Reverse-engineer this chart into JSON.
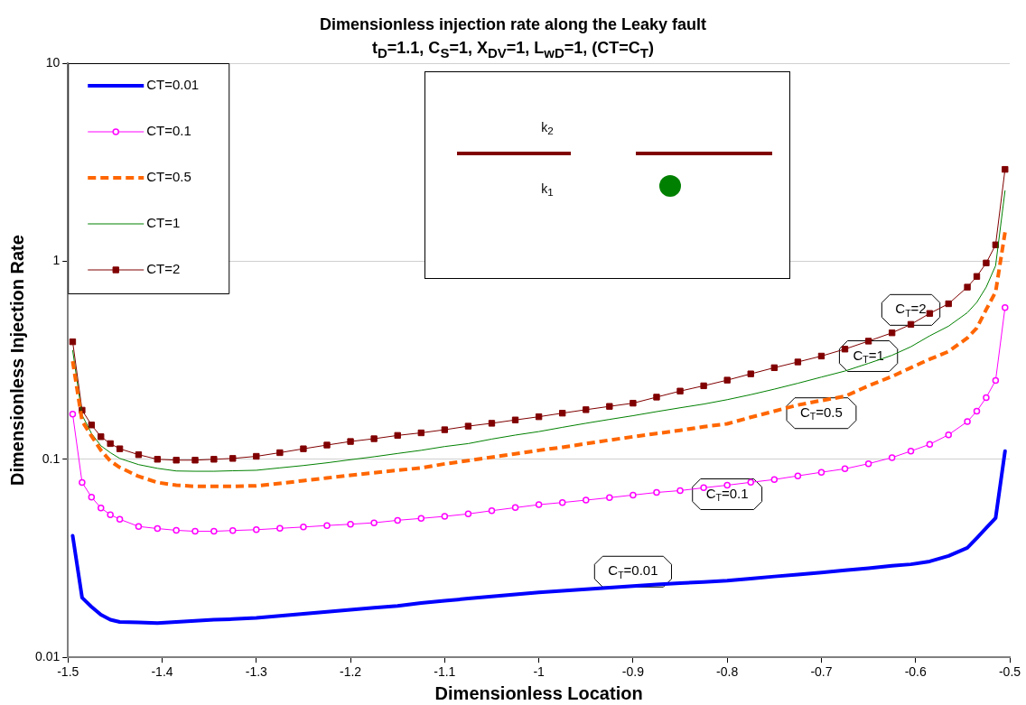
{
  "chart_data": {
    "type": "line",
    "title": "Dimensionless injection rate along the Leaky fault",
    "subtitle": "t$_{D}$=1.1,   C$_{S}$=1, X$_{DV}$=1, L$_{wD}$=1, (CT=C$_{T}$)",
    "xlabel": "Dimensionless Location",
    "ylabel": "Dimensionless Injection Rate",
    "x": [
      -1.495,
      -1.485,
      -1.475,
      -1.465,
      -1.455,
      -1.445,
      -1.425,
      -1.405,
      -1.385,
      -1.365,
      -1.345,
      -1.325,
      -1.3,
      -1.275,
      -1.25,
      -1.225,
      -1.2,
      -1.175,
      -1.15,
      -1.125,
      -1.1,
      -1.075,
      -1.05,
      -1.025,
      -1.0,
      -0.975,
      -0.95,
      -0.925,
      -0.9,
      -0.875,
      -0.85,
      -0.825,
      -0.8,
      -0.775,
      -0.75,
      -0.725,
      -0.7,
      -0.675,
      -0.65,
      -0.625,
      -0.605,
      -0.585,
      -0.565,
      -0.545,
      -0.535,
      -0.525,
      -0.515,
      -0.505
    ],
    "series": [
      {
        "name": "CT=0.01",
        "color": "#0000ff",
        "marker": "none",
        "line_style": "solid",
        "values": [
          0.0411,
          0.02,
          0.018,
          0.0164,
          0.0155,
          0.0151,
          0.015,
          0.0149,
          0.0151,
          0.0153,
          0.0155,
          0.0156,
          0.0158,
          0.0162,
          0.0166,
          0.017,
          0.0174,
          0.0178,
          0.0182,
          0.0188,
          0.0193,
          0.0198,
          0.0203,
          0.0208,
          0.0213,
          0.0217,
          0.0221,
          0.0225,
          0.0229,
          0.0233,
          0.0237,
          0.024,
          0.0244,
          0.025,
          0.0256,
          0.0262,
          0.0268,
          0.0275,
          0.0282,
          0.029,
          0.0295,
          0.0305,
          0.0325,
          0.0357,
          0.04,
          0.045,
          0.0505,
          0.11
        ]
      },
      {
        "name": "CT=0.1",
        "color": "#ff00ff",
        "marker": "circle",
        "line_style": "solid",
        "values": [
          0.169,
          0.0764,
          0.0644,
          0.0568,
          0.0525,
          0.0498,
          0.0458,
          0.0447,
          0.0438,
          0.0433,
          0.0433,
          0.0437,
          0.0441,
          0.0448,
          0.0455,
          0.0463,
          0.047,
          0.0478,
          0.0492,
          0.0503,
          0.0515,
          0.053,
          0.055,
          0.057,
          0.059,
          0.0605,
          0.0622,
          0.064,
          0.066,
          0.068,
          0.0695,
          0.0718,
          0.074,
          0.0765,
          0.079,
          0.0825,
          0.086,
          0.0895,
          0.095,
          0.102,
          0.11,
          0.119,
          0.133,
          0.155,
          0.175,
          0.205,
          0.25,
          0.584
        ]
      },
      {
        "name": "CT=0.5",
        "color": "#ff6600",
        "marker": "none",
        "line_style": "dashed",
        "values": [
          0.313,
          0.156,
          0.131,
          0.111,
          0.098,
          0.091,
          0.082,
          0.0764,
          0.074,
          0.073,
          0.073,
          0.073,
          0.0735,
          0.0755,
          0.078,
          0.0805,
          0.083,
          0.0855,
          0.088,
          0.0905,
          0.0948,
          0.0985,
          0.1025,
          0.1065,
          0.111,
          0.115,
          0.12,
          0.125,
          0.13,
          0.135,
          0.14,
          0.146,
          0.151,
          0.163,
          0.175,
          0.188,
          0.198,
          0.208,
          0.235,
          0.262,
          0.29,
          0.32,
          0.35,
          0.41,
          0.46,
          0.57,
          0.7,
          1.4
        ]
      },
      {
        "name": "CT=1",
        "color": "#008000",
        "marker": "none",
        "line_style": "solid",
        "values": [
          0.355,
          0.167,
          0.135,
          0.117,
          0.108,
          0.101,
          0.094,
          0.09,
          0.0873,
          0.087,
          0.087,
          0.0875,
          0.088,
          0.0905,
          0.093,
          0.096,
          0.0995,
          0.103,
          0.107,
          0.111,
          0.116,
          0.12,
          0.1265,
          0.1325,
          0.138,
          0.145,
          0.152,
          0.159,
          0.166,
          0.174,
          0.182,
          0.19,
          0.2,
          0.212,
          0.226,
          0.242,
          0.26,
          0.279,
          0.305,
          0.335,
          0.37,
          0.42,
          0.47,
          0.55,
          0.62,
          0.74,
          0.95,
          2.27
        ]
      },
      {
        "name": "CT=2",
        "color": "#800000",
        "marker": "square",
        "line_style": "solid",
        "values": [
          0.392,
          0.177,
          0.149,
          0.13,
          0.12,
          0.113,
          0.1055,
          0.1,
          0.099,
          0.099,
          0.1,
          0.101,
          0.1035,
          0.108,
          0.113,
          0.118,
          0.123,
          0.127,
          0.132,
          0.136,
          0.141,
          0.147,
          0.152,
          0.158,
          0.164,
          0.171,
          0.178,
          0.185,
          0.192,
          0.206,
          0.221,
          0.235,
          0.251,
          0.27,
          0.29,
          0.31,
          0.332,
          0.36,
          0.395,
          0.435,
          0.48,
          0.545,
          0.61,
          0.74,
          0.838,
          0.98,
          1.21,
          2.91
        ]
      }
    ],
    "xlim": [
      -1.5,
      -0.5
    ],
    "xticks": [
      -1.5,
      -1.4,
      -1.3,
      -1.2,
      -1.1,
      -1,
      -0.9,
      -0.8,
      -0.7,
      -0.6,
      -0.5
    ],
    "ylim": [
      0.01,
      10
    ],
    "yticks": [
      0.01,
      0.1,
      1,
      10
    ],
    "log": true,
    "grid": "y",
    "legend": "top left",
    "annotations": [
      "k$_{2}$",
      "k$_{1}$",
      {
        "text": "C$_{T}$=2",
        "x": -0.605,
        "y": 0.48
      },
      {
        "text": "C$_{T}$=1",
        "x": -0.65,
        "y": 0.305
      },
      {
        "text": "C$_{T}$=0.5",
        "x": -0.7,
        "y": 0.198
      },
      {
        "text": "C$_{T}$=0.1",
        "x": -0.8,
        "y": 0.074
      },
      {
        "text": "C$_{T}$=0.01",
        "x": -0.9,
        "y": 0.0229
      }
    ]
  }
}
